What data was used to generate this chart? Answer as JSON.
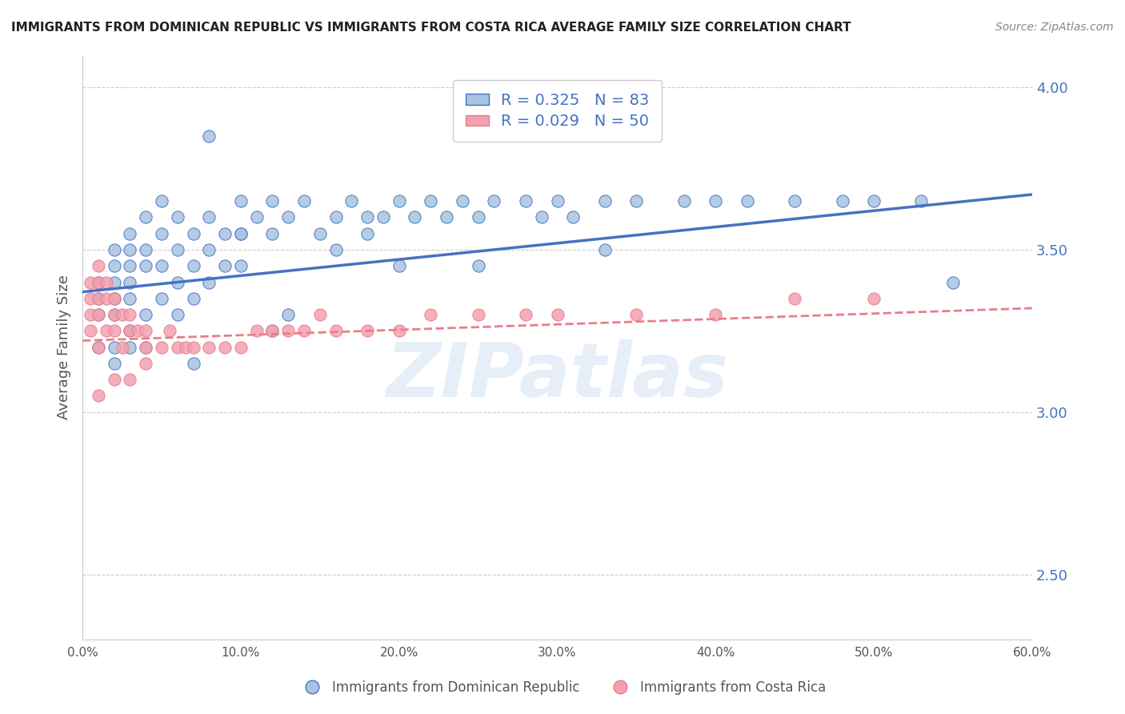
{
  "title": "IMMIGRANTS FROM DOMINICAN REPUBLIC VS IMMIGRANTS FROM COSTA RICA AVERAGE FAMILY SIZE CORRELATION CHART",
  "source": "Source: ZipAtlas.com",
  "xlabel": "",
  "ylabel": "Average Family Size",
  "watermark": "ZIPatlas",
  "xlim": [
    0.0,
    0.6
  ],
  "ylim": [
    2.3,
    4.1
  ],
  "yticks": [
    2.5,
    3.0,
    3.5,
    4.0
  ],
  "xticks": [
    0.0,
    0.1,
    0.2,
    0.3,
    0.4,
    0.5,
    0.6
  ],
  "xtick_labels": [
    "0.0%",
    "10.0%",
    "20.0%",
    "30.0%",
    "40.0%",
    "50.0%",
    "60.0%"
  ],
  "ytick_labels": [
    "2.50",
    "3.00",
    "3.50",
    "4.00"
  ],
  "blue_color": "#a8c4e0",
  "pink_color": "#f4a0b0",
  "blue_line_color": "#4472c4",
  "pink_line_color": "#e87e8a",
  "legend_R1": "0.325",
  "legend_N1": "83",
  "legend_R2": "0.029",
  "legend_N2": "50",
  "legend_label1": "Immigrants from Dominican Republic",
  "legend_label2": "Immigrants from Costa Rica",
  "title_color": "#222222",
  "axis_color": "#4472c4",
  "blue_scatter_x": [
    0.01,
    0.01,
    0.01,
    0.01,
    0.02,
    0.02,
    0.02,
    0.02,
    0.02,
    0.02,
    0.02,
    0.03,
    0.03,
    0.03,
    0.03,
    0.03,
    0.03,
    0.03,
    0.04,
    0.04,
    0.04,
    0.04,
    0.04,
    0.05,
    0.05,
    0.05,
    0.05,
    0.06,
    0.06,
    0.06,
    0.06,
    0.07,
    0.07,
    0.07,
    0.08,
    0.08,
    0.08,
    0.09,
    0.09,
    0.1,
    0.1,
    0.1,
    0.11,
    0.12,
    0.12,
    0.13,
    0.14,
    0.15,
    0.16,
    0.17,
    0.18,
    0.18,
    0.19,
    0.2,
    0.21,
    0.22,
    0.23,
    0.24,
    0.25,
    0.26,
    0.28,
    0.29,
    0.3,
    0.31,
    0.33,
    0.35,
    0.38,
    0.4,
    0.42,
    0.45,
    0.48,
    0.5,
    0.53,
    0.12,
    0.13,
    0.07,
    0.25,
    0.16,
    0.2,
    0.1,
    0.08,
    0.33,
    0.55
  ],
  "blue_scatter_y": [
    3.4,
    3.35,
    3.3,
    3.2,
    3.5,
    3.45,
    3.4,
    3.35,
    3.3,
    3.2,
    3.15,
    3.55,
    3.5,
    3.45,
    3.4,
    3.35,
    3.25,
    3.2,
    3.6,
    3.5,
    3.45,
    3.3,
    3.2,
    3.65,
    3.55,
    3.45,
    3.35,
    3.6,
    3.5,
    3.4,
    3.3,
    3.55,
    3.45,
    3.35,
    3.6,
    3.5,
    3.4,
    3.55,
    3.45,
    3.65,
    3.55,
    3.45,
    3.6,
    3.65,
    3.55,
    3.6,
    3.65,
    3.55,
    3.6,
    3.65,
    3.6,
    3.55,
    3.6,
    3.65,
    3.6,
    3.65,
    3.6,
    3.65,
    3.6,
    3.65,
    3.65,
    3.6,
    3.65,
    3.6,
    3.65,
    3.65,
    3.65,
    3.65,
    3.65,
    3.65,
    3.65,
    3.65,
    3.65,
    3.25,
    3.3,
    3.15,
    3.45,
    3.5,
    3.45,
    3.55,
    3.85,
    3.5,
    3.4
  ],
  "pink_scatter_x": [
    0.005,
    0.005,
    0.005,
    0.005,
    0.01,
    0.01,
    0.01,
    0.01,
    0.01,
    0.015,
    0.015,
    0.015,
    0.02,
    0.02,
    0.02,
    0.025,
    0.025,
    0.03,
    0.03,
    0.035,
    0.04,
    0.04,
    0.05,
    0.055,
    0.06,
    0.065,
    0.07,
    0.08,
    0.09,
    0.1,
    0.11,
    0.12,
    0.13,
    0.14,
    0.15,
    0.16,
    0.18,
    0.2,
    0.22,
    0.25,
    0.28,
    0.3,
    0.35,
    0.4,
    0.45,
    0.5,
    0.02,
    0.03,
    0.01,
    0.04
  ],
  "pink_scatter_y": [
    3.4,
    3.35,
    3.3,
    3.25,
    3.45,
    3.4,
    3.35,
    3.3,
    3.2,
    3.4,
    3.35,
    3.25,
    3.35,
    3.3,
    3.25,
    3.3,
    3.2,
    3.3,
    3.25,
    3.25,
    3.25,
    3.2,
    3.2,
    3.25,
    3.2,
    3.2,
    3.2,
    3.2,
    3.2,
    3.2,
    3.25,
    3.25,
    3.25,
    3.25,
    3.3,
    3.25,
    3.25,
    3.25,
    3.3,
    3.3,
    3.3,
    3.3,
    3.3,
    3.3,
    3.35,
    3.35,
    3.1,
    3.1,
    3.05,
    3.15
  ],
  "blue_trend_x": [
    0.0,
    0.6
  ],
  "blue_trend_y": [
    3.37,
    3.67
  ],
  "pink_trend_x": [
    0.0,
    0.6
  ],
  "pink_trend_y": [
    3.22,
    3.32
  ],
  "background_color": "#ffffff",
  "grid_color": "#cccccc",
  "legend_text_color": "#4472c4"
}
